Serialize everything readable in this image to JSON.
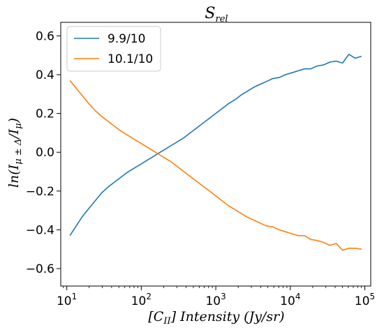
{
  "chart_data": {
    "type": "line",
    "title": "S",
    "title_sub": "rel",
    "xlabel": "[C",
    "xlabel_sub": "II",
    "xlabel_rest": "] Intensity (Jy/sr)",
    "ylabel": "ln(I",
    "ylabel_sub": "μ ± Δ",
    "ylabel_rest": "/I",
    "ylabel_sub2": "μ",
    "ylabel_end": ")",
    "xscale": "log",
    "xlim": [
      8.3,
      120000
    ],
    "ylim": [
      -0.69,
      0.67
    ],
    "x_ticks": [
      {
        "value": 10,
        "base": "10",
        "exp": "1"
      },
      {
        "value": 100,
        "base": "10",
        "exp": "2"
      },
      {
        "value": 1000,
        "base": "10",
        "exp": "3"
      },
      {
        "value": 10000,
        "base": "10",
        "exp": "4"
      },
      {
        "value": 100000,
        "base": "10",
        "exp": "5"
      }
    ],
    "y_ticks": [
      {
        "value": -0.6,
        "label": "−0.6"
      },
      {
        "value": -0.4,
        "label": "−0.4"
      },
      {
        "value": -0.2,
        "label": "−0.2"
      },
      {
        "value": 0.0,
        "label": "0.0"
      },
      {
        "value": 0.2,
        "label": "0.2"
      },
      {
        "value": 0.4,
        "label": "0.4"
      },
      {
        "value": 0.6,
        "label": "0.6"
      }
    ],
    "grid": false,
    "legend_position": "upper-left",
    "series": [
      {
        "name": "9.9/10",
        "color": "#1f77b4",
        "x": [
          11,
          13.4,
          16.3,
          19.8,
          24.1,
          29.3,
          35.7,
          43.4,
          52.8,
          64.2,
          78.1,
          95,
          115.6,
          140.6,
          171,
          208,
          253,
          308,
          374,
          455,
          554,
          674,
          820,
          997,
          1213,
          1476,
          1795,
          2184,
          2657,
          3232,
          3931,
          4782,
          5818,
          7077,
          8609,
          10473,
          12740,
          15500,
          18856,
          22938,
          27905,
          33947,
          41297,
          50238,
          61115,
          74347,
          90443
        ],
        "y": [
          -0.43,
          -0.38,
          -0.33,
          -0.29,
          -0.25,
          -0.21,
          -0.18,
          -0.155,
          -0.13,
          -0.105,
          -0.085,
          -0.065,
          -0.045,
          -0.025,
          -0.005,
          0.015,
          0.035,
          0.055,
          0.075,
          0.1,
          0.125,
          0.15,
          0.175,
          0.2,
          0.225,
          0.25,
          0.27,
          0.295,
          0.315,
          0.335,
          0.35,
          0.365,
          0.38,
          0.385,
          0.4,
          0.41,
          0.42,
          0.43,
          0.43,
          0.445,
          0.45,
          0.465,
          0.47,
          0.46,
          0.505,
          0.485,
          0.495
        ]
      },
      {
        "name": "10.1/10",
        "color": "#ff7f0e",
        "x": [
          11,
          13.4,
          16.3,
          19.8,
          24.1,
          29.3,
          35.7,
          43.4,
          52.8,
          64.2,
          78.1,
          95,
          115.6,
          140.6,
          171,
          208,
          253,
          308,
          374,
          455,
          554,
          674,
          820,
          997,
          1213,
          1476,
          1795,
          2184,
          2657,
          3232,
          3931,
          4782,
          5818,
          7077,
          8609,
          10473,
          12740,
          15500,
          18856,
          22938,
          27905,
          33947,
          41297,
          50238,
          61115,
          74347,
          90443
        ],
        "y": [
          0.37,
          0.33,
          0.29,
          0.25,
          0.215,
          0.185,
          0.16,
          0.135,
          0.11,
          0.09,
          0.07,
          0.05,
          0.03,
          0.01,
          -0.01,
          -0.03,
          -0.05,
          -0.075,
          -0.1,
          -0.125,
          -0.15,
          -0.175,
          -0.2,
          -0.225,
          -0.25,
          -0.275,
          -0.295,
          -0.315,
          -0.335,
          -0.35,
          -0.365,
          -0.38,
          -0.385,
          -0.4,
          -0.41,
          -0.42,
          -0.43,
          -0.43,
          -0.45,
          -0.455,
          -0.465,
          -0.48,
          -0.47,
          -0.505,
          -0.495,
          -0.495,
          -0.5
        ]
      }
    ]
  }
}
